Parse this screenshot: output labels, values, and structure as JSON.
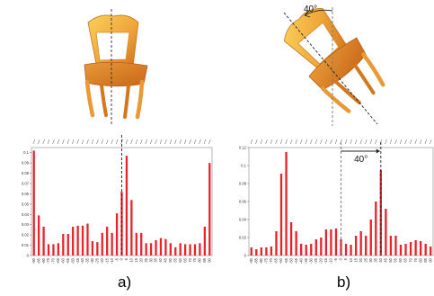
{
  "figure": {
    "panel_a_label": "a)",
    "panel_b_label": "b)",
    "rotation_label_top": "40°",
    "rotation_label_chart": "40°"
  },
  "colors": {
    "bar": "#e8232a",
    "chair_light": "#f6c445",
    "chair_dark": "#d9821e"
  },
  "chart_data": [
    {
      "type": "bar",
      "panel": "a)",
      "categories": [
        "-90",
        "-85",
        "-80",
        "-75",
        "-70",
        "-65",
        "-60",
        "-55",
        "-50",
        "-45",
        "-40",
        "-35",
        "-30",
        "-25",
        "-20",
        "-15",
        "-10",
        "-5",
        "0",
        "5",
        "10",
        "15",
        "20",
        "25",
        "30",
        "35",
        "40",
        "45",
        "50",
        "55",
        "60",
        "65",
        "70",
        "75",
        "80",
        "85",
        "90"
      ],
      "values": [
        0.102,
        0.039,
        0.028,
        0.011,
        0.011,
        0.012,
        0.021,
        0.021,
        0.028,
        0.029,
        0.029,
        0.031,
        0.014,
        0.013,
        0.022,
        0.028,
        0.022,
        0.041,
        0.062,
        0.097,
        0.054,
        0.022,
        0.022,
        0.012,
        0.012,
        0.015,
        0.017,
        0.016,
        0.012,
        0.008,
        0.012,
        0.011,
        0.011,
        0.011,
        0.012,
        0.028,
        0.09
      ],
      "yticks": [
        "0",
        "0.01",
        "0.02",
        "0.03",
        "0.04",
        "0.05",
        "0.06",
        "0.07",
        "0.08",
        "0.09",
        "0.1"
      ],
      "ylim": [
        0,
        0.105
      ],
      "marker_category": "0",
      "grid": false
    },
    {
      "type": "bar",
      "panel": "b)",
      "categories": [
        "-90",
        "-85",
        "-80",
        "-75",
        "-70",
        "-65",
        "-60",
        "-55",
        "-50",
        "-45",
        "-40",
        "-35",
        "-30",
        "-25",
        "-20",
        "-15",
        "-10",
        "-5",
        "0",
        "5",
        "10",
        "15",
        "20",
        "25",
        "30",
        "35",
        "40",
        "45",
        "50",
        "55",
        "60",
        "65",
        "70",
        "75",
        "80",
        "85",
        "90"
      ],
      "values": [
        0.009,
        0.007,
        0.009,
        0.009,
        0.01,
        0.027,
        0.091,
        0.115,
        0.037,
        0.027,
        0.013,
        0.012,
        0.013,
        0.018,
        0.02,
        0.029,
        0.029,
        0.03,
        0.018,
        0.013,
        0.012,
        0.022,
        0.027,
        0.022,
        0.04,
        0.06,
        0.095,
        0.052,
        0.022,
        0.022,
        0.012,
        0.013,
        0.015,
        0.017,
        0.016,
        0.013,
        0.01
      ],
      "yticks": [
        "0",
        "0.02",
        "0.04",
        "0.06",
        "0.08",
        "0.1",
        "0.12"
      ],
      "ylim": [
        0,
        0.12
      ],
      "marker_categories": [
        "0",
        "40"
      ],
      "grid": false
    }
  ]
}
